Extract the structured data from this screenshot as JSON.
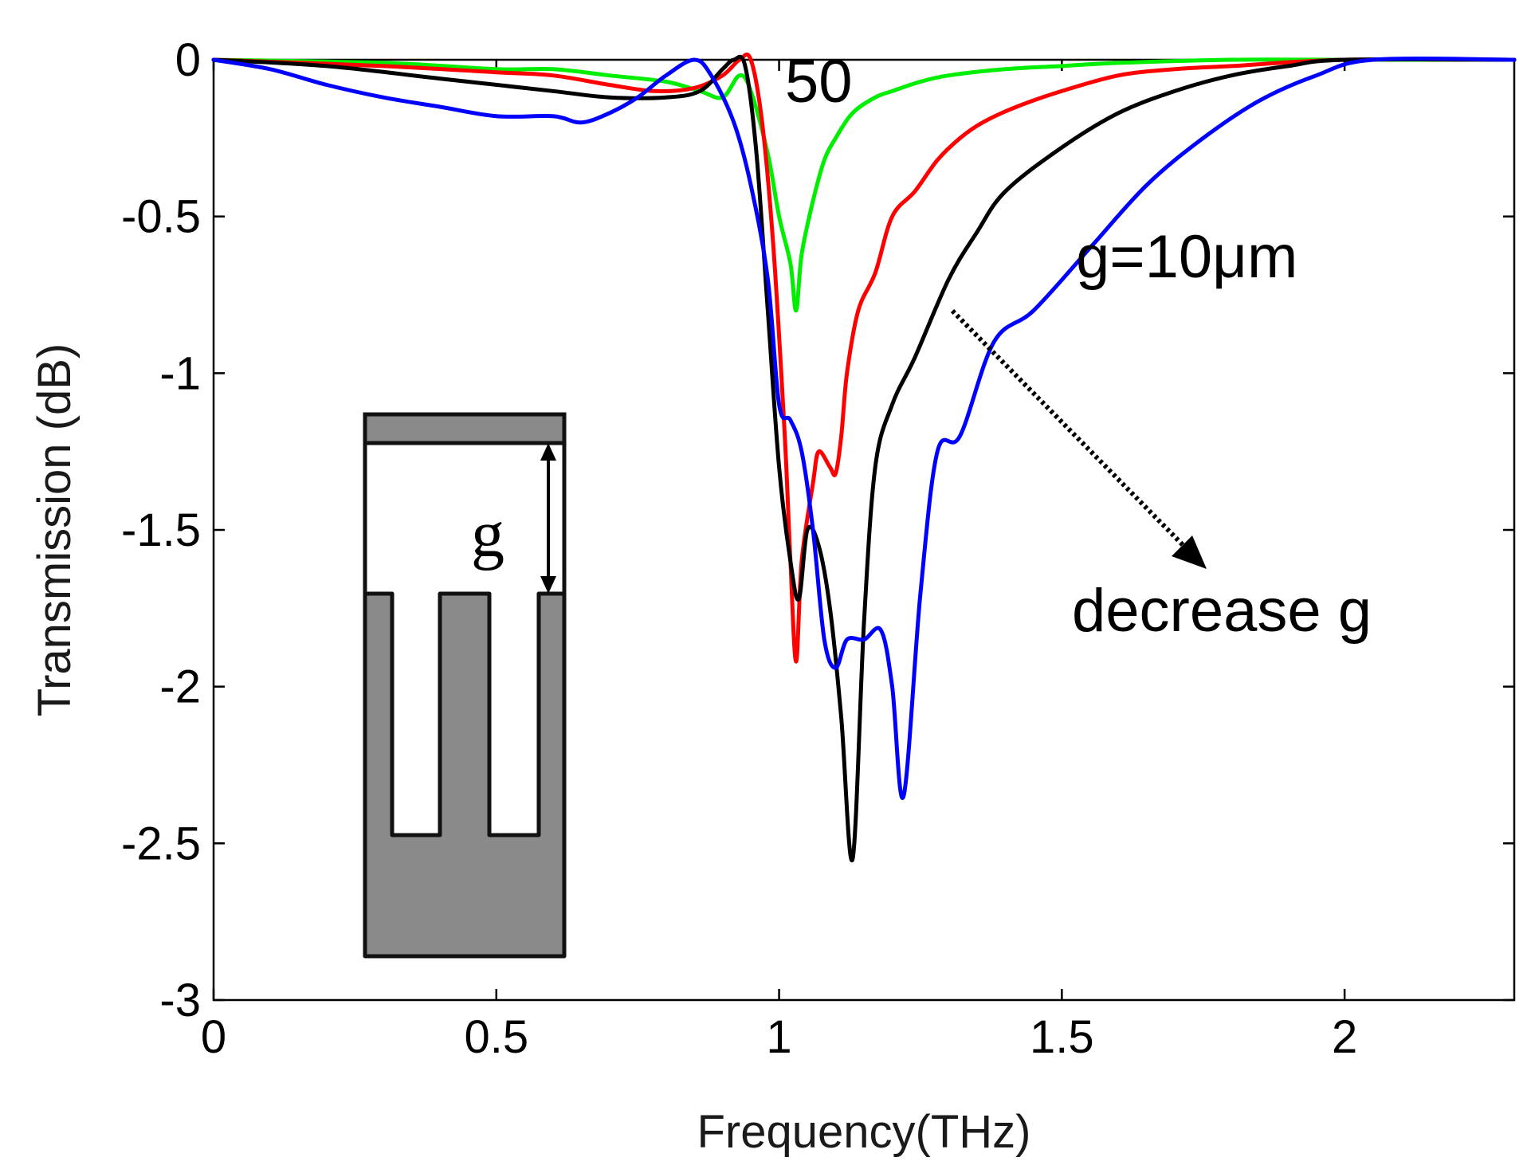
{
  "chart_data": {
    "type": "line",
    "xlabel": "Frequency(THz)",
    "ylabel": "Transmission (dB)",
    "xlim": [
      0,
      2.3
    ],
    "ylim": [
      -3,
      0
    ],
    "xticks": [
      0,
      0.5,
      1,
      1.5,
      2
    ],
    "yticks": [
      0,
      -0.5,
      -1,
      -1.5,
      -2,
      -2.5,
      -3
    ],
    "xtick_labels": [
      "0",
      "0.5",
      "1",
      "1.5",
      "2"
    ],
    "ytick_labels": [
      "0",
      "-0.5",
      "-1",
      "-1.5",
      "-2",
      "-2.5",
      "-3"
    ],
    "grid": false,
    "series": [
      {
        "color": "#00ee00",
        "x": [
          0,
          0.3,
          0.5,
          0.6,
          0.7,
          0.8,
          0.86,
          0.9,
          0.93,
          0.95,
          0.98,
          1.0,
          1.02,
          1.03,
          1.04,
          1.06,
          1.08,
          1.1,
          1.13,
          1.17,
          1.2,
          1.25,
          1.3,
          1.4,
          1.5,
          1.6,
          1.8,
          2.0,
          2.3
        ],
        "y": [
          0,
          -0.01,
          -0.03,
          -0.03,
          -0.05,
          -0.07,
          -0.1,
          -0.12,
          -0.05,
          -0.1,
          -0.3,
          -0.5,
          -0.65,
          -0.8,
          -0.62,
          -0.45,
          -0.32,
          -0.25,
          -0.17,
          -0.12,
          -0.1,
          -0.07,
          -0.05,
          -0.03,
          -0.02,
          -0.01,
          0,
          0,
          0
        ]
      },
      {
        "color": "#ff0000",
        "x": [
          0,
          0.3,
          0.5,
          0.6,
          0.7,
          0.78,
          0.85,
          0.9,
          0.93,
          0.95,
          0.97,
          0.99,
          1.01,
          1.02,
          1.03,
          1.04,
          1.06,
          1.07,
          1.09,
          1.1,
          1.11,
          1.12,
          1.14,
          1.17,
          1.2,
          1.24,
          1.28,
          1.32,
          1.36,
          1.42,
          1.5,
          1.6,
          1.7,
          1.8,
          2.0,
          2.3
        ],
        "y": [
          0,
          -0.02,
          -0.04,
          -0.05,
          -0.08,
          -0.1,
          -0.09,
          -0.05,
          0,
          0,
          -0.2,
          -0.6,
          -1.2,
          -1.6,
          -1.92,
          -1.6,
          -1.35,
          -1.25,
          -1.3,
          -1.32,
          -1.2,
          -1.0,
          -0.8,
          -0.68,
          -0.5,
          -0.42,
          -0.32,
          -0.25,
          -0.2,
          -0.15,
          -0.1,
          -0.05,
          -0.03,
          -0.02,
          0,
          0
        ]
      },
      {
        "color": "#000000",
        "x": [
          0,
          0.2,
          0.4,
          0.6,
          0.7,
          0.8,
          0.86,
          0.9,
          0.92,
          0.94,
          0.96,
          0.98,
          1.0,
          1.02,
          1.035,
          1.05,
          1.07,
          1.09,
          1.11,
          1.13,
          1.15,
          1.17,
          1.2,
          1.24,
          1.3,
          1.35,
          1.4,
          1.5,
          1.6,
          1.7,
          1.8,
          1.9,
          2.0,
          2.3
        ],
        "y": [
          0,
          -0.02,
          -0.06,
          -0.1,
          -0.12,
          -0.12,
          -0.1,
          -0.03,
          0,
          -0.02,
          -0.3,
          -0.8,
          -1.3,
          -1.6,
          -1.72,
          -1.5,
          -1.55,
          -1.75,
          -2.1,
          -2.55,
          -1.8,
          -1.3,
          -1.1,
          -0.95,
          -0.7,
          -0.55,
          -0.42,
          -0.28,
          -0.17,
          -0.1,
          -0.05,
          -0.02,
          0,
          0
        ]
      },
      {
        "color": "#0000ff",
        "x": [
          0,
          0.1,
          0.2,
          0.3,
          0.4,
          0.5,
          0.6,
          0.65,
          0.7,
          0.75,
          0.8,
          0.85,
          0.88,
          0.92,
          0.95,
          0.98,
          1.0,
          1.02,
          1.04,
          1.06,
          1.08,
          1.1,
          1.12,
          1.15,
          1.18,
          1.2,
          1.22,
          1.25,
          1.28,
          1.32,
          1.38,
          1.45,
          1.55,
          1.65,
          1.75,
          1.85,
          1.95,
          2.05,
          2.3
        ],
        "y": [
          0,
          -0.03,
          -0.08,
          -0.12,
          -0.15,
          -0.18,
          -0.18,
          -0.2,
          -0.17,
          -0.12,
          -0.05,
          0,
          -0.05,
          -0.2,
          -0.4,
          -0.7,
          -1.1,
          -1.15,
          -1.25,
          -1.5,
          -1.85,
          -1.94,
          -1.85,
          -1.85,
          -1.82,
          -2.0,
          -2.35,
          -1.7,
          -1.25,
          -1.2,
          -0.9,
          -0.8,
          -0.6,
          -0.4,
          -0.25,
          -0.13,
          -0.05,
          0,
          0
        ]
      }
    ],
    "annotations": {
      "label_50": "50",
      "label_g10": "g=10μm",
      "label_decrease": "decrease g",
      "inset_label": "g"
    }
  }
}
